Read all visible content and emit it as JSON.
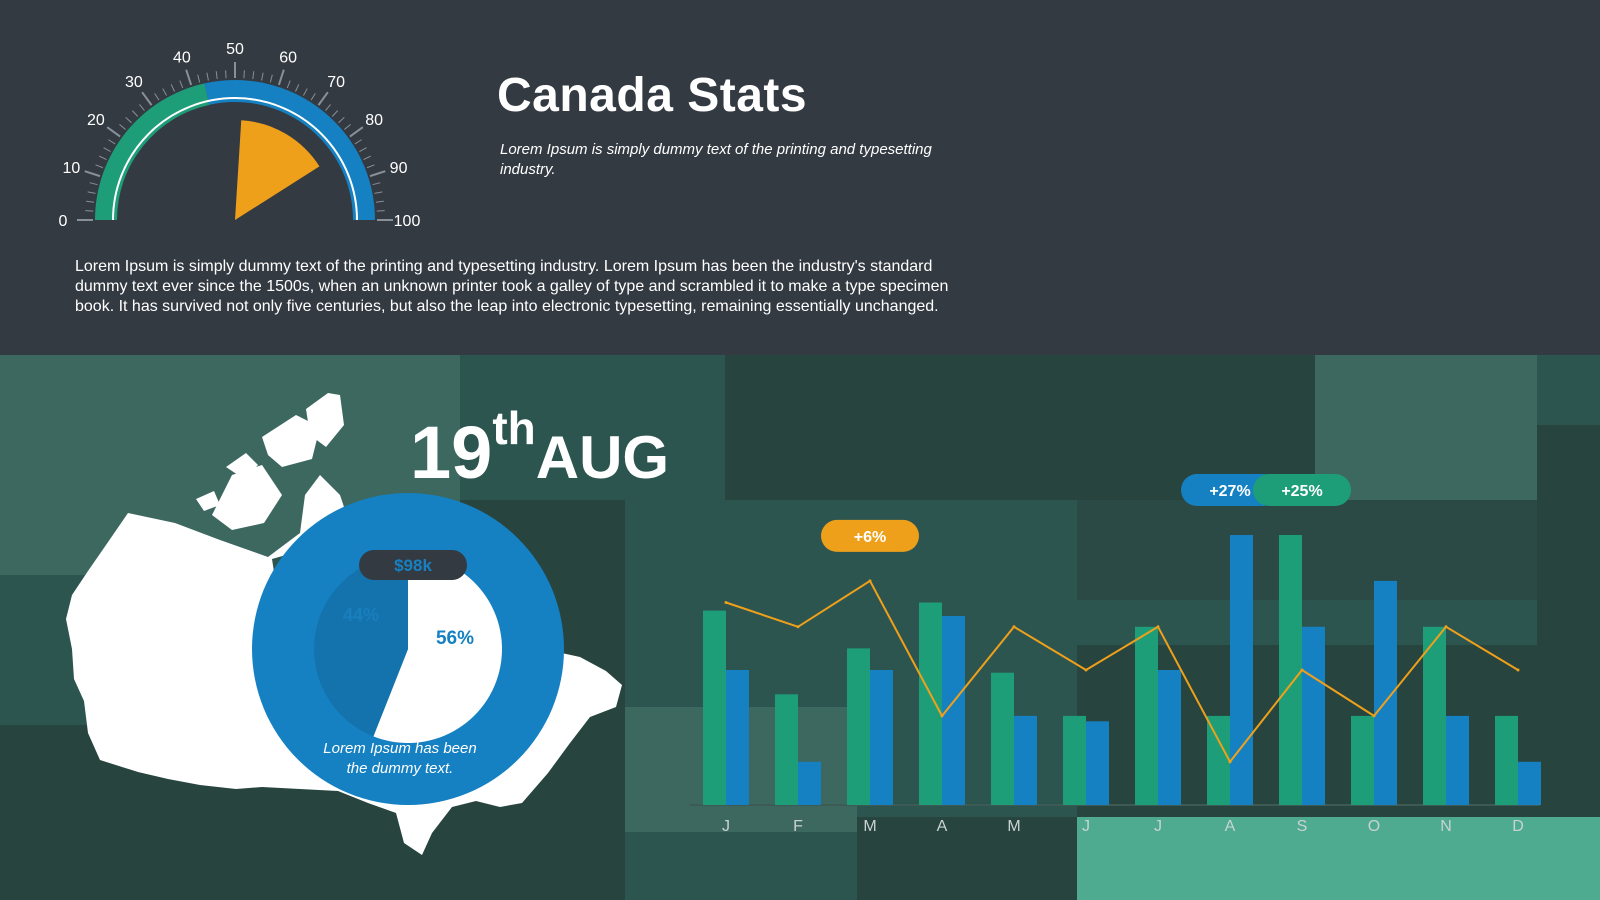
{
  "title": "Canada Stats",
  "subtitle": "Lorem Ipsum is simply dummy text of the printing and typesetting industry.",
  "description": "Lorem Ipsum is simply dummy text of the printing and typesetting industry. Lorem Ipsum has been the industry's standard dummy text ever since the 1500s, when an unknown printer took a galley of type and scrambled it to make a type specimen book. It has survived not only five centuries, but also the leap into electronic typesetting, remaining essentially unchanged.",
  "date": {
    "day": "19",
    "suffix": "th",
    "month": "AUG"
  },
  "colors": {
    "background_top": "#343a42",
    "background_bottom": "#2b4a45",
    "green": "#1e9e78",
    "blue": "#1581c2",
    "orange": "#efa01b",
    "white": "#ffffff"
  },
  "chart_data": [
    {
      "type": "gauge",
      "min": 0,
      "max": 100,
      "tick_labels": [
        "0",
        "10",
        "20",
        "30",
        "40",
        "50",
        "60",
        "70",
        "80",
        "90",
        "100"
      ],
      "green_band": [
        0,
        43
      ],
      "blue_band": [
        43,
        100
      ],
      "needle_sector": [
        52,
        82
      ]
    },
    {
      "type": "pie",
      "slices": [
        {
          "label": "44%",
          "value": 44,
          "color": "#1473ad"
        },
        {
          "label": "56%",
          "value": 56,
          "color": "#ffffff"
        }
      ],
      "badge": "$98k",
      "caption": [
        "Lorem Ipsum has been",
        "the dummy text."
      ]
    },
    {
      "type": "bar",
      "categories": [
        "J",
        "F",
        "M",
        "A",
        "M",
        "J",
        "J",
        "A",
        "S",
        "O",
        "N",
        "D"
      ],
      "ylim": [
        0,
        100
      ],
      "series": [
        {
          "values": [
            72,
            41,
            58,
            75,
            49,
            33,
            66,
            33,
            100,
            33,
            66,
            33
          ],
          "color": "#1e9e78"
        },
        {
          "values": [
            50,
            16,
            50,
            70,
            33,
            31,
            50,
            100,
            66,
            83,
            33,
            16
          ],
          "color": "#1581c2"
        },
        {
          "values": [
            75,
            66,
            83,
            33,
            66,
            50,
            66,
            16,
            50,
            33,
            66,
            50
          ],
          "color": "#efa01b",
          "render": "line"
        }
      ],
      "callouts": [
        {
          "label": "+6%",
          "category_index": 2,
          "color": "#efa01b"
        },
        {
          "label": "+27%",
          "category_index": 7,
          "color": "#1581c2"
        },
        {
          "label": "+25%",
          "category_index": 8,
          "color": "#1e9e78"
        }
      ]
    }
  ]
}
